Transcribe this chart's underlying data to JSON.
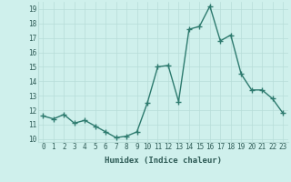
{
  "x": [
    0,
    1,
    2,
    3,
    4,
    5,
    6,
    7,
    8,
    9,
    10,
    11,
    12,
    13,
    14,
    15,
    16,
    17,
    18,
    19,
    20,
    21,
    22,
    23
  ],
  "y": [
    11.6,
    11.4,
    11.7,
    11.1,
    11.3,
    10.9,
    10.5,
    10.1,
    10.2,
    10.5,
    12.5,
    15.0,
    15.1,
    12.6,
    17.6,
    17.8,
    19.2,
    16.8,
    17.2,
    14.5,
    13.4,
    13.4,
    12.8,
    11.8
  ],
  "xlabel": "Humidex (Indice chaleur)",
  "xlim": [
    -0.5,
    23.5
  ],
  "ylim": [
    9.8,
    19.5
  ],
  "yticks": [
    10,
    11,
    12,
    13,
    14,
    15,
    16,
    17,
    18,
    19
  ],
  "xticks": [
    0,
    1,
    2,
    3,
    4,
    5,
    6,
    7,
    8,
    9,
    10,
    11,
    12,
    13,
    14,
    15,
    16,
    17,
    18,
    19,
    20,
    21,
    22,
    23
  ],
  "line_color": "#2d7a6e",
  "marker": "+",
  "marker_size": 4,
  "bg_color": "#cff0ec",
  "grid_color": "#b8ddd8",
  "line_width": 1.0,
  "tick_fontsize": 5.5,
  "xlabel_fontsize": 6.5
}
